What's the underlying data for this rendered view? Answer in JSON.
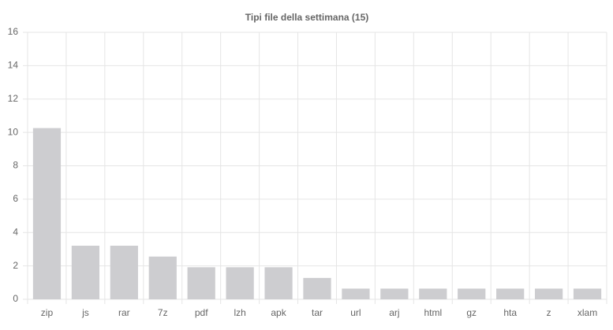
{
  "chart_data": {
    "type": "bar",
    "title": "Tipi file della settimana (15)",
    "categories": [
      "zip",
      "js",
      "rar",
      "7z",
      "pdf",
      "lzh",
      "apk",
      "tar",
      "url",
      "arj",
      "html",
      "gz",
      "hta",
      "z",
      "xlam"
    ],
    "values": [
      10.26,
      3.21,
      3.21,
      2.56,
      1.92,
      1.92,
      1.92,
      1.28,
      0.64,
      0.64,
      0.64,
      0.64,
      0.64,
      0.64,
      0.64
    ],
    "color": "#cdcdd0",
    "ylim": [
      0,
      16
    ],
    "yticks": [
      0,
      2,
      4,
      6,
      8,
      10,
      12,
      14,
      16
    ],
    "grid": true
  }
}
